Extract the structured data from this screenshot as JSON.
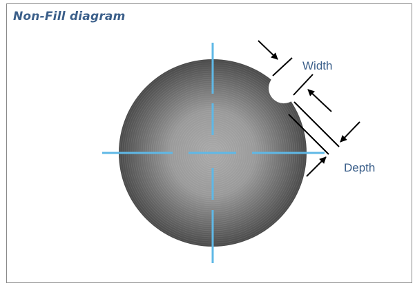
{
  "title": "Non-Fill diagram",
  "labels": {
    "width": "Width",
    "depth": "Depth"
  },
  "colors": {
    "title": "#3b5f8a",
    "label": "#3b5f8a",
    "crosshair": "#5fb8e6",
    "ring_dark": "#4a4a4a",
    "ring_light": "#a9a9a9",
    "frame": "#8a8a8a"
  },
  "icons": [
    "arrow-icon"
  ]
}
